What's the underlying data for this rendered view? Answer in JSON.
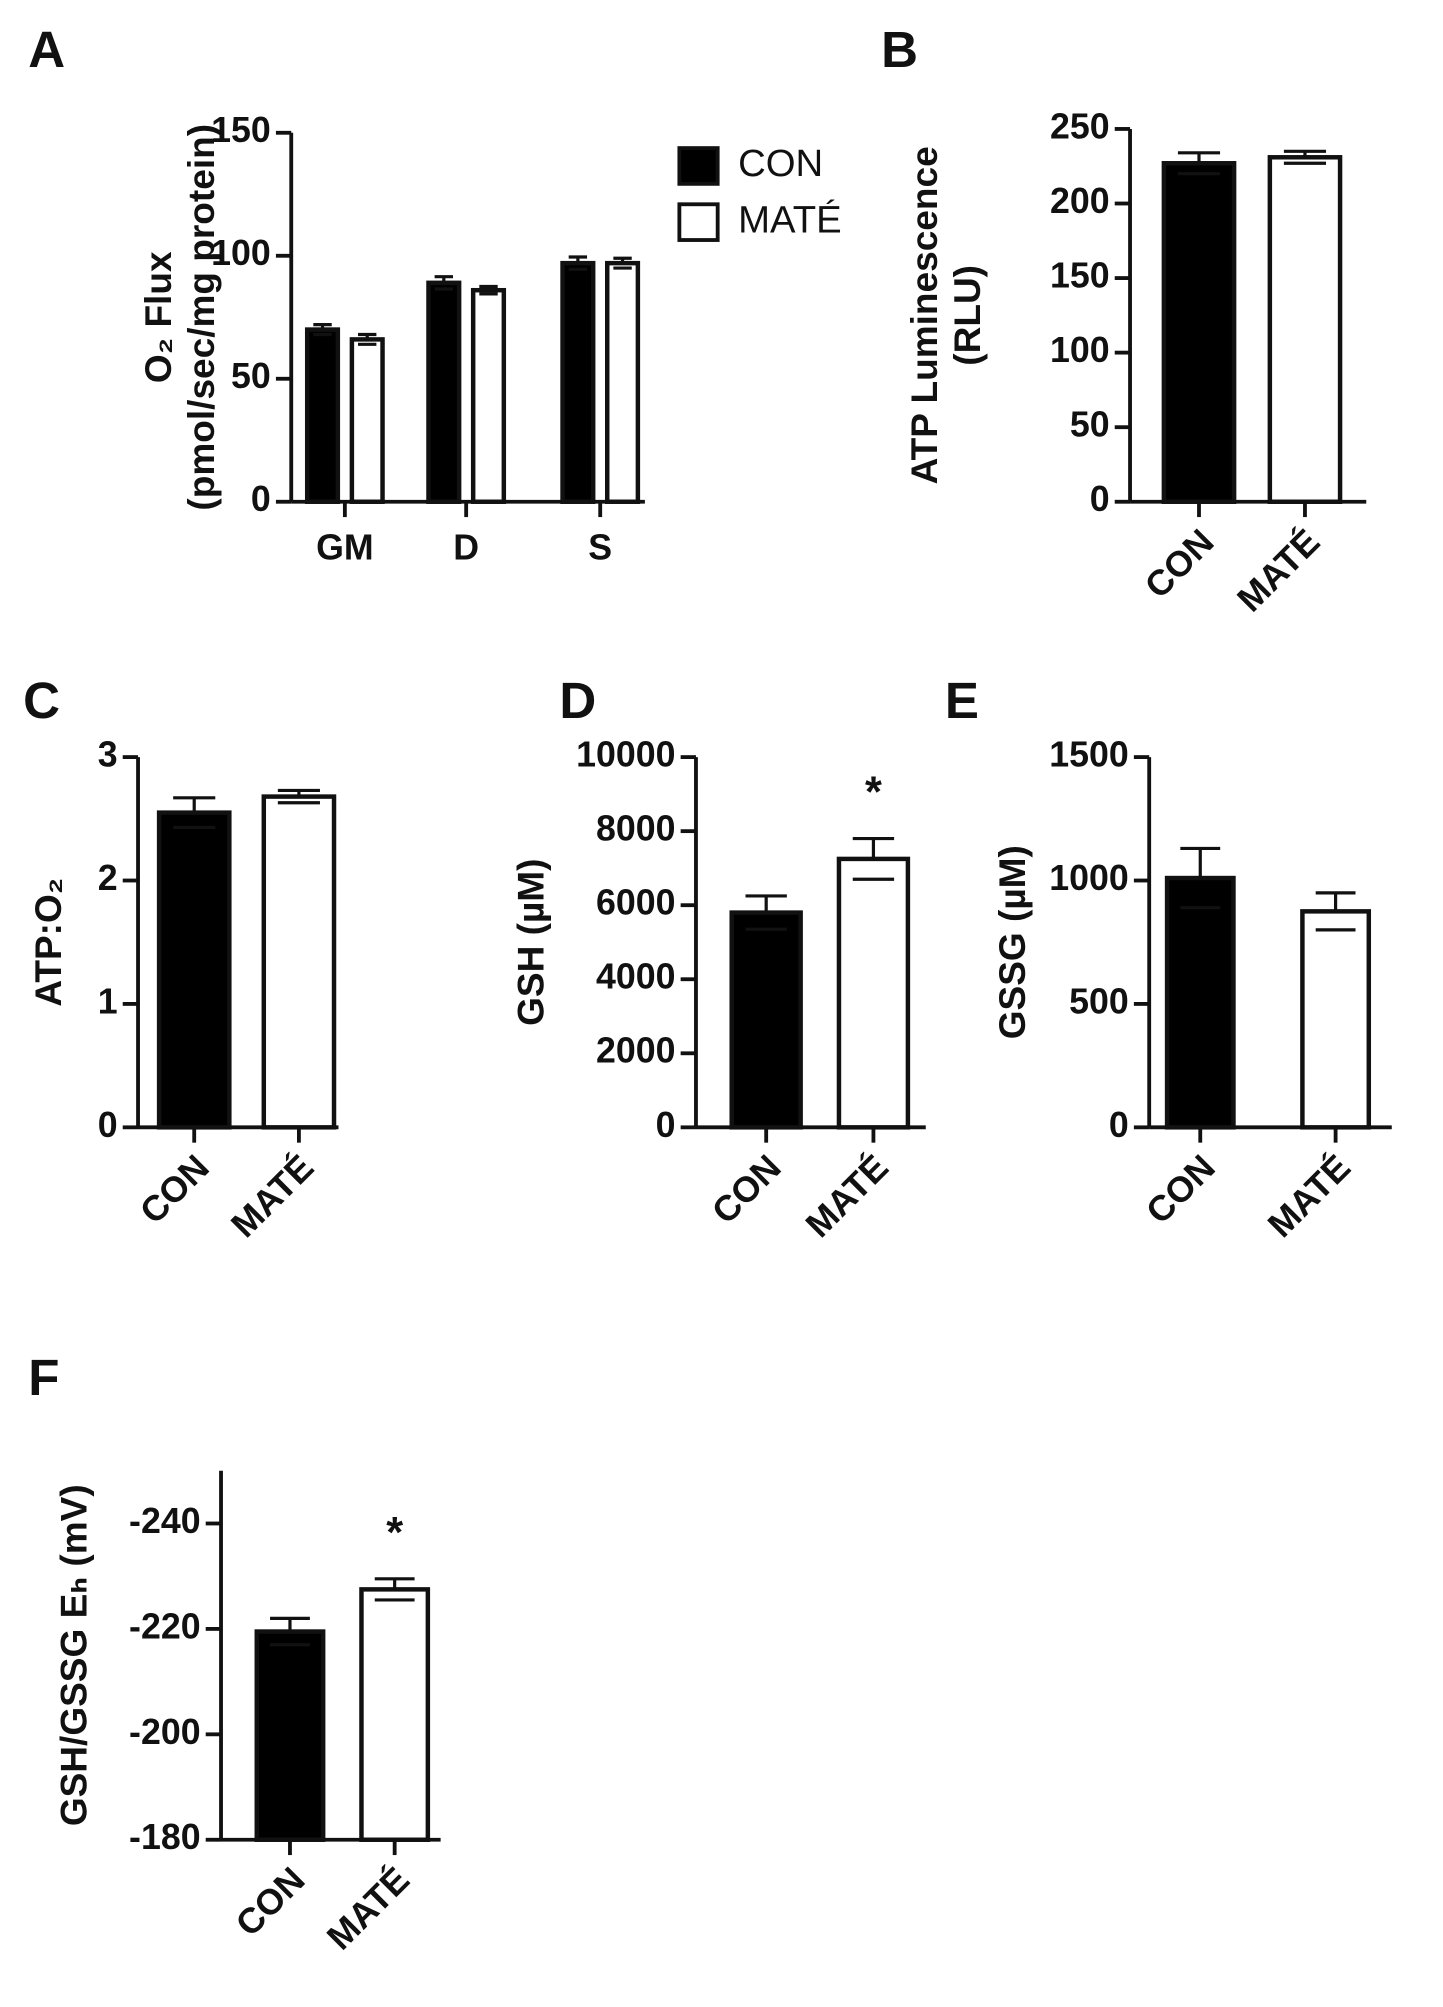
{
  "chart_data": [
    {
      "type": "bar",
      "panel": "A",
      "ylabel": [
        "O₂ Flux",
        "(pmol/sec/mg protein)"
      ],
      "categories": [
        "GM",
        "D",
        "S"
      ],
      "series": [
        {
          "name": "CON",
          "color": "#000000",
          "values": [
            70,
            89,
            97
          ],
          "errors": [
            2,
            2.5,
            2.5
          ]
        },
        {
          "name": "MATÉ",
          "color": "#ffffff",
          "values": [
            66,
            86,
            97
          ],
          "errors": [
            2,
            1.5,
            2
          ]
        }
      ],
      "ylim": [
        0,
        150
      ],
      "yticks": [
        0,
        50,
        100,
        150
      ],
      "legend": "upper right"
    },
    {
      "type": "bar",
      "panel": "B",
      "ylabel": [
        "ATP Luminescence",
        "(RLU)"
      ],
      "categories": [
        "CON",
        "MATÉ"
      ],
      "series": [
        {
          "color": [
            "#000000",
            "#ffffff"
          ],
          "values": [
            227,
            231
          ],
          "errors": [
            7,
            4
          ]
        }
      ],
      "ylim": [
        0,
        250
      ],
      "yticks": [
        0,
        50,
        100,
        150,
        200,
        250
      ]
    },
    {
      "type": "bar",
      "panel": "C",
      "ylabel": [
        "ATP:O₂"
      ],
      "categories": [
        "CON",
        "MATÉ"
      ],
      "series": [
        {
          "color": [
            "#000000",
            "#ffffff"
          ],
          "values": [
            2.55,
            2.68
          ],
          "errors": [
            0.12,
            0.05
          ]
        }
      ],
      "ylim": [
        0,
        3
      ],
      "yticks": [
        0,
        1,
        2,
        3
      ]
    },
    {
      "type": "bar",
      "panel": "D",
      "ylabel": [
        "GSH (µM)"
      ],
      "categories": [
        "CON",
        "MATÉ"
      ],
      "series": [
        {
          "color": [
            "#000000",
            "#ffffff"
          ],
          "values": [
            5800,
            7250
          ],
          "errors": [
            450,
            550
          ]
        }
      ],
      "ylim": [
        0,
        10000
      ],
      "yticks": [
        0,
        2000,
        4000,
        6000,
        8000,
        10000
      ],
      "annotation": "*"
    },
    {
      "type": "bar",
      "panel": "E",
      "ylabel": [
        "GSSG (µM)"
      ],
      "categories": [
        "CON",
        "MATÉ"
      ],
      "series": [
        {
          "color": [
            "#000000",
            "#ffffff"
          ],
          "values": [
            1010,
            875
          ],
          "errors": [
            120,
            75
          ]
        }
      ],
      "ylim": [
        0,
        1500
      ],
      "yticks": [
        0,
        500,
        1000,
        1500
      ]
    },
    {
      "type": "bar",
      "panel": "F",
      "ylabel": [
        "GSH/GSSG Eₕ (mV)"
      ],
      "categories": [
        "CON",
        "MATÉ"
      ],
      "series": [
        {
          "color": [
            "#000000",
            "#ffffff"
          ],
          "values": [
            -219.5,
            -227.5
          ],
          "errors": [
            2.5,
            2
          ]
        }
      ],
      "ylim": [
        -180,
        -250
      ],
      "yticks": [
        -180,
        -200,
        -220,
        -240
      ],
      "annotation": "*"
    }
  ]
}
